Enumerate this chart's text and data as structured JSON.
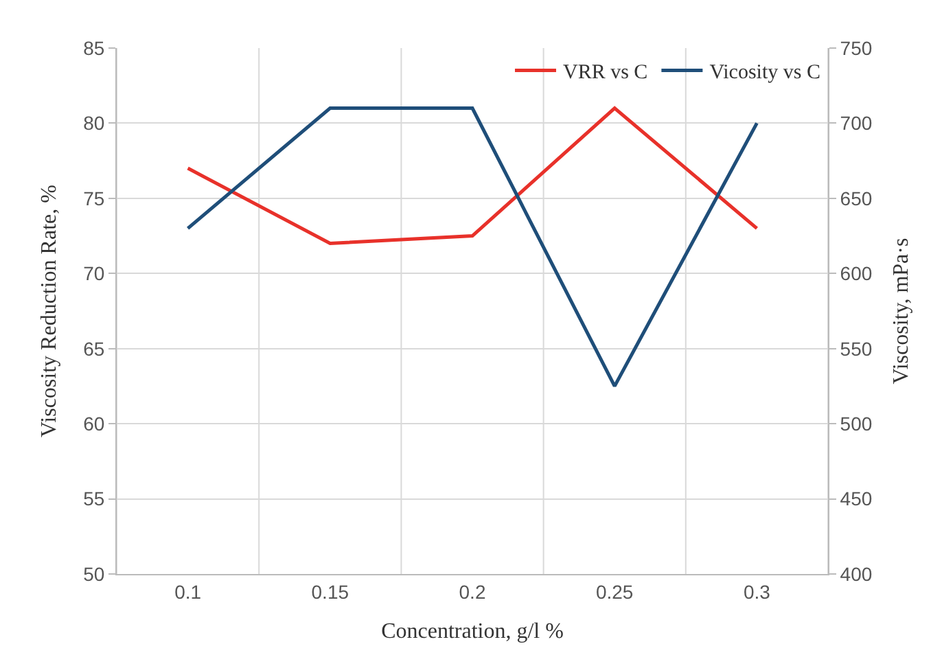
{
  "chart_data": {
    "type": "line",
    "xlabel": "Concentration, g/l %",
    "ylabel": "Viscosity Reduction Rate, %",
    "y2label": "Viscosity, mPa·s",
    "categories": [
      "0.1",
      "0.15",
      "0.2",
      "0.25",
      "0.3"
    ],
    "series": [
      {
        "name": "VRR vs C",
        "color": "#e8312a",
        "values": [
          77,
          72,
          72.5,
          81,
          73
        ]
      },
      {
        "name": "Vicosity vs C",
        "color": "#1f4e79",
        "values": [
          630,
          710,
          710,
          525,
          700
        ],
        "axis": "y2"
      }
    ],
    "ylim": [
      50,
      85
    ],
    "yticks": [
      50,
      55,
      60,
      65,
      70,
      75,
      80,
      85
    ],
    "y2lim": [
      400,
      750
    ],
    "y2ticks": [
      400,
      450,
      500,
      550,
      600,
      650,
      700,
      750
    ],
    "grid": true,
    "legend": "top right",
    "marker": "none",
    "line_style": "solid"
  }
}
